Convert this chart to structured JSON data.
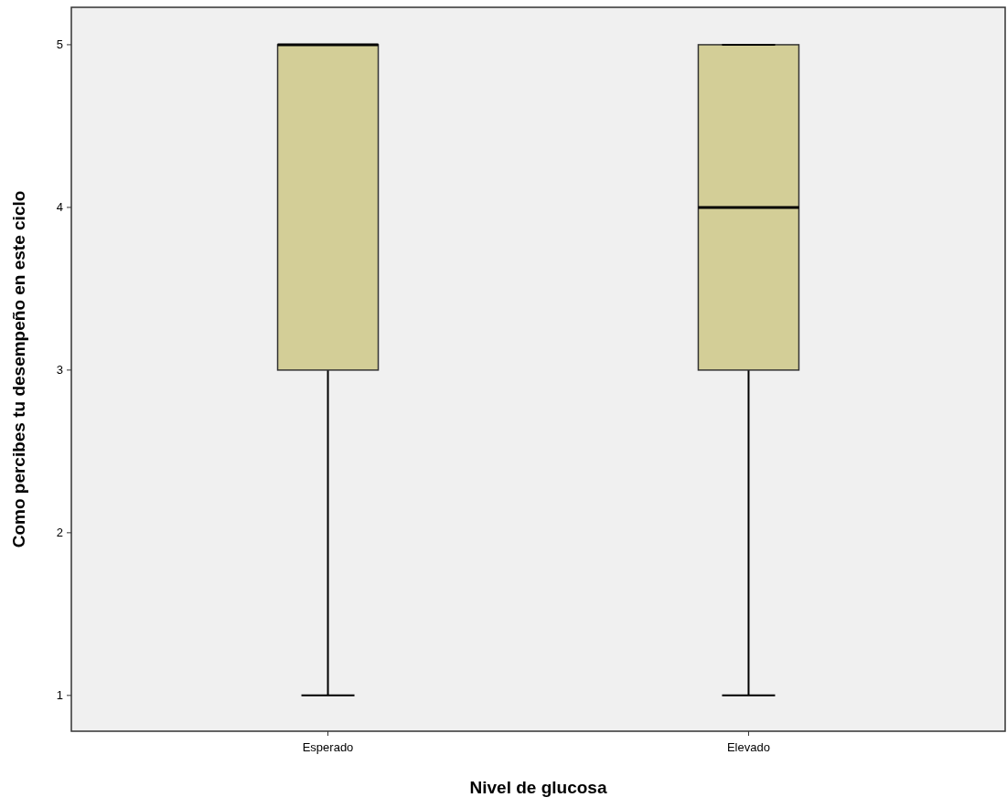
{
  "chart_data": {
    "type": "box",
    "xlabel": "Nivel de glucosa",
    "ylabel": "Como percibes tu desempeño en este ciclo",
    "categories": [
      "Esperado",
      "Elevado"
    ],
    "color": "#d3ce97",
    "boxes": [
      {
        "low": 1,
        "q1": 3,
        "median": 5,
        "q3": 5,
        "high": 5
      },
      {
        "low": 1,
        "q1": 3,
        "median": 4,
        "q3": 5,
        "high": 5
      }
    ],
    "ylim": [
      0.78,
      5.23
    ],
    "yticks": [
      1,
      2,
      3,
      4,
      5
    ],
    "grid": false
  }
}
